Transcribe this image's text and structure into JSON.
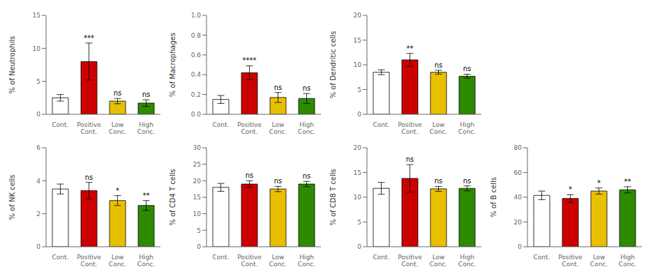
{
  "chart_data": [
    {
      "type": "bar",
      "ylabel": "% of Neutrophils",
      "categories": [
        "Cont.",
        "Positive\nCont.",
        "Low\nConc.",
        "High\nConc."
      ],
      "values": [
        2.5,
        8.0,
        2.0,
        1.7
      ],
      "errors": [
        0.5,
        2.8,
        0.4,
        0.5
      ],
      "colors": [
        "#FFFFFF",
        "#CC0000",
        "#E8C000",
        "#2E8B00"
      ],
      "annotations": [
        null,
        "***",
        "ns",
        "ns"
      ],
      "ylim": [
        0,
        15
      ],
      "yticks": [
        0,
        5,
        10,
        15
      ],
      "grid": false
    },
    {
      "type": "bar",
      "ylabel": "% of Macrophages",
      "categories": [
        "Cont.",
        "Positive\nCont.",
        "Low\nConc.",
        "High\nConc."
      ],
      "values": [
        0.15,
        0.42,
        0.17,
        0.16
      ],
      "errors": [
        0.04,
        0.07,
        0.05,
        0.05
      ],
      "colors": [
        "#FFFFFF",
        "#CC0000",
        "#E8C000",
        "#2E8B00"
      ],
      "annotations": [
        null,
        "****",
        "ns",
        "ns"
      ],
      "ylim": [
        0,
        1.0
      ],
      "yticks": [
        {
          "value": 0,
          "label": "0.0"
        },
        0.2,
        0.4,
        0.6,
        0.8,
        {
          "value": 1.0,
          "label": "1.0"
        }
      ],
      "grid": false
    },
    {
      "type": "bar",
      "ylabel": "% of Dendritic cells",
      "categories": [
        "Cont.",
        "Positive\nCont.",
        "Low\nConc.",
        "High\nConc."
      ],
      "values": [
        8.5,
        11.0,
        8.5,
        7.7
      ],
      "errors": [
        0.5,
        1.3,
        0.4,
        0.4
      ],
      "colors": [
        "#FFFFFF",
        "#CC0000",
        "#E8C000",
        "#2E8B00"
      ],
      "annotations": [
        null,
        "**",
        "ns",
        "ns"
      ],
      "ylim": [
        0,
        20
      ],
      "yticks": [
        0,
        5,
        10,
        15,
        20
      ],
      "grid": false
    },
    {
      "type": "bar",
      "ylabel": "% of NK cells",
      "categories": [
        "Cont.",
        "Positive\nCont.",
        "Low\nConc.",
        "High\nConc."
      ],
      "values": [
        3.5,
        3.4,
        2.8,
        2.5
      ],
      "errors": [
        0.3,
        0.5,
        0.3,
        0.3
      ],
      "colors": [
        "#FFFFFF",
        "#CC0000",
        "#E8C000",
        "#2E8B00"
      ],
      "annotations": [
        null,
        "ns",
        "*",
        "**"
      ],
      "ylim": [
        0,
        6
      ],
      "yticks": [
        0,
        2,
        4,
        6
      ],
      "grid": false
    },
    {
      "type": "bar",
      "ylabel": "% of CD4 T cells",
      "categories": [
        "Cont.",
        "Positive\nCont.",
        "Low\nConc.",
        "High\nConc."
      ],
      "values": [
        18.0,
        19.0,
        17.5,
        19.0
      ],
      "errors": [
        1.2,
        1.0,
        0.8,
        0.8
      ],
      "colors": [
        "#FFFFFF",
        "#CC0000",
        "#E8C000",
        "#2E8B00"
      ],
      "annotations": [
        null,
        "ns",
        "ns",
        "ns"
      ],
      "ylim": [
        0,
        30
      ],
      "yticks": [
        0,
        5,
        10,
        15,
        20,
        25,
        30
      ],
      "grid": false
    },
    {
      "type": "bar",
      "ylabel": "% of CD8 T cells",
      "categories": [
        "Cont.",
        "Positive\nCont.",
        "Low\nConc.",
        "High\nConc."
      ],
      "values": [
        11.8,
        13.8,
        11.7,
        11.8
      ],
      "errors": [
        1.2,
        2.8,
        0.5,
        0.5
      ],
      "colors": [
        "#FFFFFF",
        "#CC0000",
        "#E8C000",
        "#2E8B00"
      ],
      "annotations": [
        null,
        "ns",
        "ns",
        "ns"
      ],
      "ylim": [
        0,
        20
      ],
      "yticks": [
        0,
        5,
        10,
        15,
        20
      ],
      "grid": false
    },
    {
      "type": "bar",
      "ylabel": "% of B cells",
      "categories": [
        "Cont.",
        "Positive\nCont.",
        "Low\nConc.",
        "High\nConc."
      ],
      "values": [
        41.5,
        39.0,
        45.0,
        46.0
      ],
      "errors": [
        3.5,
        3.0,
        2.5,
        2.5
      ],
      "colors": [
        "#FFFFFF",
        "#CC0000",
        "#E8C000",
        "#2E8B00"
      ],
      "annotations": [
        null,
        "*",
        "*",
        "**"
      ],
      "ylim": [
        0,
        80
      ],
      "yticks": [
        0,
        20,
        40,
        60,
        80
      ],
      "grid": false
    }
  ]
}
